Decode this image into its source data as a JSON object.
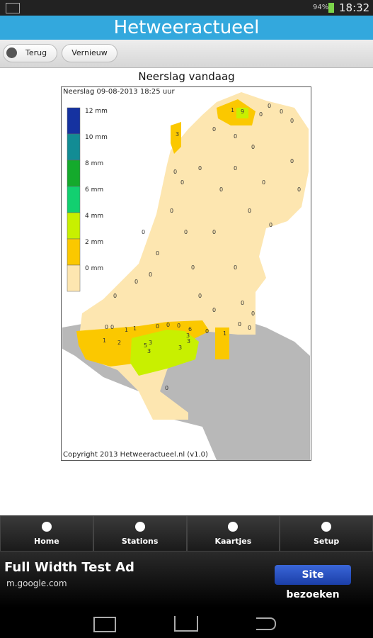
{
  "status_bar": {
    "battery": "94%",
    "time": "18:32"
  },
  "header": {
    "title": "Hetweeractueel"
  },
  "toolbar": {
    "back": "Terug",
    "refresh": "Vernieuw"
  },
  "content": {
    "heading": "Neerslag vandaag",
    "map": {
      "caption": "Neerslag 09-08-2013  18:25 uur",
      "legend": [
        "12 mm",
        "10 mm",
        "8 mm",
        "6 mm",
        "4 mm",
        "2 mm",
        "0 mm"
      ],
      "stations": [
        9,
        1,
        3,
        1,
        2,
        1,
        1,
        5,
        3,
        3,
        3,
        3,
        3,
        6,
        0,
        1,
        0,
        0,
        0,
        0,
        0,
        0,
        0,
        0,
        0,
        0,
        0,
        0,
        0,
        0,
        0,
        0,
        0,
        0,
        0,
        0,
        0,
        0,
        0,
        0,
        0,
        0,
        0,
        0,
        0,
        0,
        0,
        0,
        0,
        0,
        0,
        0,
        0,
        0,
        0
      ],
      "copyright": "Copyright 2013 Hetweeractueel.nl (v1.0)"
    }
  },
  "nav": [
    "Home",
    "Stations",
    "Kaartjes",
    "Setup"
  ],
  "ad": {
    "title": "Full Width Test Ad",
    "url": "m.google.com",
    "button": "Site bezoeken"
  }
}
